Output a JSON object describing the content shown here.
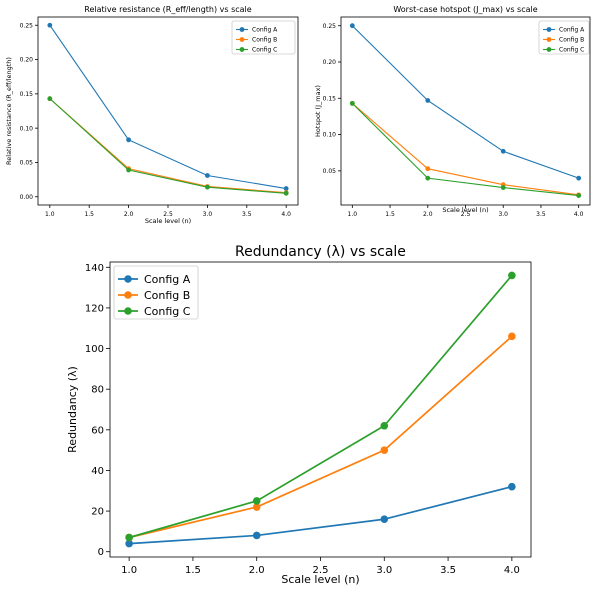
{
  "chart_data": [
    {
      "type": "line",
      "title": "Relative resistance (R_eff/length) vs scale",
      "xlabel": "Scale level (n)",
      "ylabel": "Relative resistance (R_eff/length)",
      "x": [
        1.0,
        2.0,
        3.0,
        4.0
      ],
      "xlim": [
        0.85,
        4.15
      ],
      "ylim": [
        -0.012,
        0.262
      ],
      "xticks": [
        1.0,
        1.5,
        2.0,
        2.5,
        3.0,
        3.5,
        4.0
      ],
      "xtick_labels": [
        "1.0",
        "1.5",
        "2.0",
        "2.5",
        "3.0",
        "3.5",
        "4.0"
      ],
      "yticks": [
        0.0,
        0.05,
        0.1,
        0.15,
        0.2,
        0.25
      ],
      "ytick_labels": [
        "0.00",
        "0.05",
        "0.10",
        "0.15",
        "0.20",
        "0.25"
      ],
      "legend": "upper right",
      "grid": false,
      "series": [
        {
          "name": "Config A",
          "color": "#1f77b4",
          "values": [
            0.25,
            0.083,
            0.031,
            0.012
          ]
        },
        {
          "name": "Config B",
          "color": "#ff7f0e",
          "values": [
            0.143,
            0.041,
            0.015,
            0.006
          ]
        },
        {
          "name": "Config C",
          "color": "#2ca02c",
          "values": [
            0.143,
            0.039,
            0.014,
            0.005
          ]
        }
      ]
    },
    {
      "type": "line",
      "title": "Worst-case hotspot (J_max) vs scale",
      "xlabel": "Scale level (n)",
      "ylabel": "Hotspot (J_max)",
      "x": [
        1.0,
        2.0,
        3.0,
        4.0
      ],
      "xlim": [
        0.85,
        4.15
      ],
      "ylim": [
        0.003,
        0.262
      ],
      "xticks": [
        1.0,
        1.5,
        2.0,
        2.5,
        3.0,
        3.5,
        4.0
      ],
      "xtick_labels": [
        "1.0",
        "1.5",
        "2.0",
        "2.5",
        "3.0",
        "3.5",
        "4.0"
      ],
      "yticks": [
        0.05,
        0.1,
        0.15,
        0.2,
        0.25
      ],
      "ytick_labels": [
        "0.05",
        "0.10",
        "0.15",
        "0.20",
        "0.25"
      ],
      "legend": "upper right",
      "grid": false,
      "series": [
        {
          "name": "Config A",
          "color": "#1f77b4",
          "values": [
            0.25,
            0.147,
            0.077,
            0.04
          ]
        },
        {
          "name": "Config B",
          "color": "#ff7f0e",
          "values": [
            0.143,
            0.053,
            0.031,
            0.017
          ]
        },
        {
          "name": "Config C",
          "color": "#2ca02c",
          "values": [
            0.143,
            0.04,
            0.027,
            0.016
          ]
        }
      ]
    },
    {
      "type": "line",
      "title": "Redundancy (λ) vs scale",
      "xlabel": "Scale level (n)",
      "ylabel": "Redundancy (λ)",
      "x": [
        1.0,
        2.0,
        3.0,
        4.0
      ],
      "xlim": [
        0.85,
        4.15
      ],
      "ylim": [
        -2.6,
        142.6
      ],
      "xticks": [
        1.0,
        1.5,
        2.0,
        2.5,
        3.0,
        3.5,
        4.0
      ],
      "xtick_labels": [
        "1.0",
        "1.5",
        "2.0",
        "2.5",
        "3.0",
        "3.5",
        "4.0"
      ],
      "yticks": [
        0,
        20,
        40,
        60,
        80,
        100,
        120,
        140
      ],
      "ytick_labels": [
        "0",
        "20",
        "40",
        "60",
        "80",
        "100",
        "120",
        "140"
      ],
      "legend": "upper left",
      "grid": false,
      "series": [
        {
          "name": "Config A",
          "color": "#1f77b4",
          "values": [
            4,
            8,
            16,
            32
          ]
        },
        {
          "name": "Config B",
          "color": "#ff7f0e",
          "values": [
            7,
            22,
            50,
            106
          ]
        },
        {
          "name": "Config C",
          "color": "#2ca02c",
          "values": [
            7,
            25,
            62,
            136
          ]
        }
      ]
    }
  ]
}
